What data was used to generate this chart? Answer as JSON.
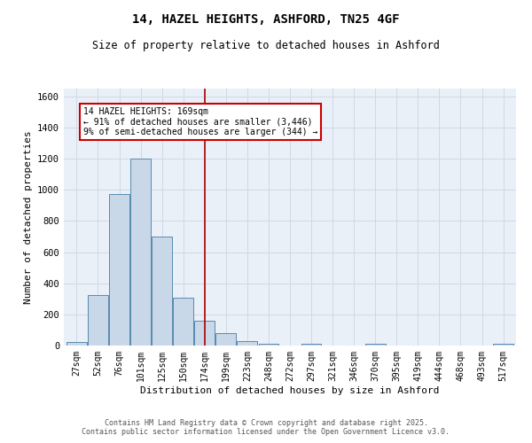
{
  "title_line1": "14, HAZEL HEIGHTS, ASHFORD, TN25 4GF",
  "title_line2": "Size of property relative to detached houses in Ashford",
  "xlabel": "Distribution of detached houses by size in Ashford",
  "ylabel": "Number of detached properties",
  "bar_labels": [
    "27sqm",
    "52sqm",
    "76sqm",
    "101sqm",
    "125sqm",
    "150sqm",
    "174sqm",
    "199sqm",
    "223sqm",
    "248sqm",
    "272sqm",
    "297sqm",
    "321sqm",
    "346sqm",
    "370sqm",
    "395sqm",
    "419sqm",
    "444sqm",
    "468sqm",
    "493sqm",
    "517sqm"
  ],
  "bar_values": [
    25,
    325,
    975,
    1200,
    700,
    310,
    160,
    80,
    30,
    12,
    0,
    10,
    0,
    0,
    10,
    0,
    0,
    0,
    0,
    0,
    10
  ],
  "bar_color": "#c8d8e8",
  "bar_edge_color": "#5a8ab0",
  "vline_x": 6.0,
  "annotation_line1": "14 HAZEL HEIGHTS: 169sqm",
  "annotation_line2": "← 91% of detached houses are smaller (3,446)",
  "annotation_line3": "9% of semi-detached houses are larger (344) →",
  "annotation_box_color": "#ffffff",
  "annotation_box_edge": "#cc0000",
  "vline_color": "#aa0000",
  "grid_color": "#d0d8e8",
  "bg_color": "#eaf0f8",
  "footer_line1": "Contains HM Land Registry data © Crown copyright and database right 2025.",
  "footer_line2": "Contains public sector information licensed under the Open Government Licence v3.0.",
  "ylim": [
    0,
    1650
  ],
  "yticks": [
    0,
    200,
    400,
    600,
    800,
    1000,
    1200,
    1400,
    1600
  ]
}
